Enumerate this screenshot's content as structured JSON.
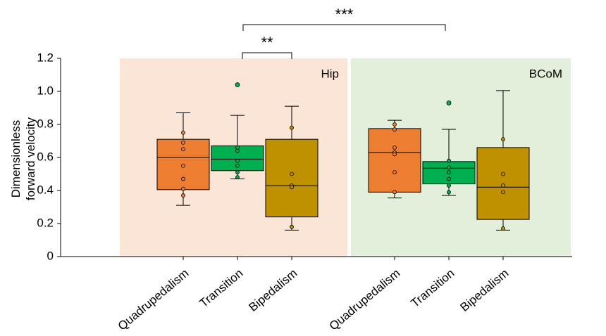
{
  "chart_data": {
    "type": "box",
    "ylabel": "Dimensionless forward velocity",
    "ylim": [
      0,
      1.2
    ],
    "yticks": [
      0,
      0.2,
      0.4,
      0.6,
      0.8,
      {
        "value": 1,
        "label": "1.0"
      },
      1.2
    ],
    "panels": [
      {
        "name": "Hip",
        "color": "#fbe5d6",
        "boxes": [
          {
            "category": "Quadrupedalism",
            "color": "#ed7d31",
            "min": 0.31,
            "q1": 0.405,
            "median": 0.6,
            "q3": 0.71,
            "max": 0.87,
            "points": [
              0.75,
              0.69,
              0.65,
              0.55,
              0.47,
              0.41,
              0.37
            ],
            "outliers": []
          },
          {
            "category": "Transition",
            "color": "#00b050",
            "min": 0.47,
            "q1": 0.52,
            "median": 0.59,
            "q3": 0.67,
            "max": 0.855,
            "points": [
              0.66,
              0.64,
              0.58,
              0.55,
              0.51,
              0.48
            ],
            "outliers": [
              1.04
            ]
          },
          {
            "category": "Bipedalism",
            "color": "#bf9000",
            "min": 0.16,
            "q1": 0.24,
            "median": 0.43,
            "q3": 0.71,
            "max": 0.91,
            "points": [
              0.78,
              0.5,
              0.43,
              0.42,
              0.18
            ],
            "outliers": []
          }
        ]
      },
      {
        "name": "BCoM",
        "color": "#e2efda",
        "boxes": [
          {
            "category": "Quadrupedalism",
            "color": "#ed7d31",
            "min": 0.355,
            "q1": 0.39,
            "median": 0.63,
            "q3": 0.775,
            "max": 0.825,
            "points": [
              0.8,
              0.77,
              0.66,
              0.63,
              0.62,
              0.51,
              0.39
            ],
            "outliers": []
          },
          {
            "category": "Transition",
            "color": "#00b050",
            "min": 0.37,
            "q1": 0.44,
            "median": 0.535,
            "q3": 0.575,
            "max": 0.77,
            "points": [
              0.58,
              0.54,
              0.51,
              0.47,
              0.43,
              0.39
            ],
            "outliers": [
              0.93
            ]
          },
          {
            "category": "Bipedalism",
            "color": "#bf9000",
            "min": 0.16,
            "q1": 0.225,
            "median": 0.42,
            "q3": 0.66,
            "max": 1.005,
            "points": [
              0.71,
              0.5,
              0.43,
              0.39,
              0.17
            ],
            "outliers": []
          }
        ]
      }
    ],
    "annotations": [
      "**",
      "***"
    ]
  }
}
